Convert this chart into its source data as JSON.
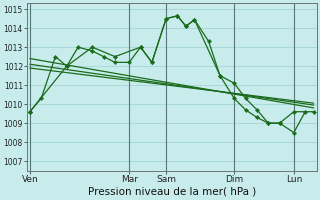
{
  "background_color": "#c8ecec",
  "grid_color": "#a8d8d8",
  "line_color": "#1a6b1a",
  "marker_color": "#1a6b1a",
  "ylim": [
    1006.5,
    1015.3
  ],
  "yticks": [
    1007,
    1008,
    1009,
    1010,
    1011,
    1012,
    1013,
    1014,
    1015
  ],
  "xlabel": "Pression niveau de la mer( hPa )",
  "day_labels": [
    "Ven",
    "Mar",
    "Sam",
    "Dim",
    "Lun"
  ],
  "day_positions": [
    0.0,
    0.35,
    0.48,
    0.72,
    0.93
  ],
  "vline_positions": [
    0.0,
    0.35,
    0.48,
    0.72,
    0.93
  ],
  "series1_x": [
    0.0,
    0.04,
    0.09,
    0.13,
    0.17,
    0.22,
    0.26,
    0.3,
    0.35,
    0.39,
    0.43,
    0.48,
    0.52,
    0.55,
    0.58,
    0.63,
    0.67,
    0.72,
    0.76,
    0.8,
    0.84,
    0.88,
    0.93,
    0.97
  ],
  "series1_y": [
    1009.6,
    1010.3,
    1012.5,
    1012.0,
    1013.0,
    1012.8,
    1012.5,
    1012.2,
    1012.2,
    1013.0,
    1012.2,
    1014.5,
    1014.65,
    1014.1,
    1014.45,
    1013.3,
    1011.5,
    1011.1,
    1010.3,
    1009.7,
    1009.0,
    1009.0,
    1008.5,
    1009.6
  ],
  "series2_x": [
    0.0,
    0.13,
    0.22,
    0.3,
    0.39,
    0.43,
    0.48,
    0.52,
    0.55,
    0.58,
    0.67,
    0.72,
    0.76,
    0.8,
    0.84,
    0.88,
    0.93,
    1.0
  ],
  "series2_y": [
    1009.6,
    1012.0,
    1013.0,
    1012.5,
    1013.0,
    1012.2,
    1014.5,
    1014.65,
    1014.1,
    1014.45,
    1011.5,
    1010.3,
    1009.7,
    1009.3,
    1009.0,
    1009.0,
    1009.6,
    1009.6
  ],
  "trend1_x": [
    0.0,
    1.0
  ],
  "trend1_y": [
    1012.4,
    1009.8
  ],
  "trend2_x": [
    0.0,
    1.0
  ],
  "trend2_y": [
    1012.1,
    1009.95
  ],
  "trend3_x": [
    0.0,
    1.0
  ],
  "trend3_y": [
    1011.9,
    1010.05
  ],
  "xlim": [
    -0.01,
    1.01
  ]
}
